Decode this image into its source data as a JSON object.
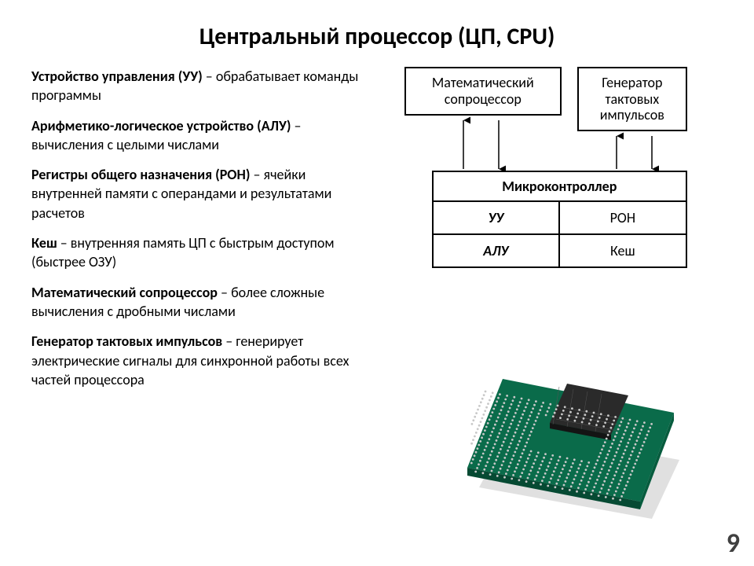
{
  "title": "Центральный процессор (ЦП, CPU)",
  "terms": [
    {
      "name": "Устройство управления (УУ)",
      "desc": " – обрабатывает команды программы"
    },
    {
      "name": "Арифметико-логическое устройство (АЛУ)",
      "desc": " – вычисления с целыми числами"
    },
    {
      "name": "Регистры общего назначения (РОН)",
      "desc": " – ячейки внутренней памяти с операндами и результатами расчетов"
    },
    {
      "name": "Кеш",
      "desc": " – внутренняя память ЦП с быстрым доступом (быстрее ОЗУ)"
    },
    {
      "name": "Математический сопроцессор",
      "desc": " – более сложные вычисления с дробными числами"
    },
    {
      "name": "Генератор тактовых импульсов",
      "desc": " – генерирует электрические сигналы для синхронной работы всех частей процессора"
    }
  ],
  "diagram": {
    "top_left": "Математический\nсопроцессор",
    "top_right": "Генератор\nтактовых\nимпульсов",
    "micro_header": "Микроконтроллер",
    "cell_uu": "УУ",
    "cell_ron": "РОН",
    "cell_alu": "АЛУ",
    "cell_cache": "Кеш",
    "arrow_stroke": "#000000",
    "arrow_width": 1.5,
    "box_border": "#000000",
    "bg": "#ffffff"
  },
  "page_number": "9",
  "cpu_colors": {
    "pcb": "#0a6b4a",
    "pcb_dark": "#064a33",
    "die": "#3a3a3a",
    "pin": "#c8c8c8"
  }
}
